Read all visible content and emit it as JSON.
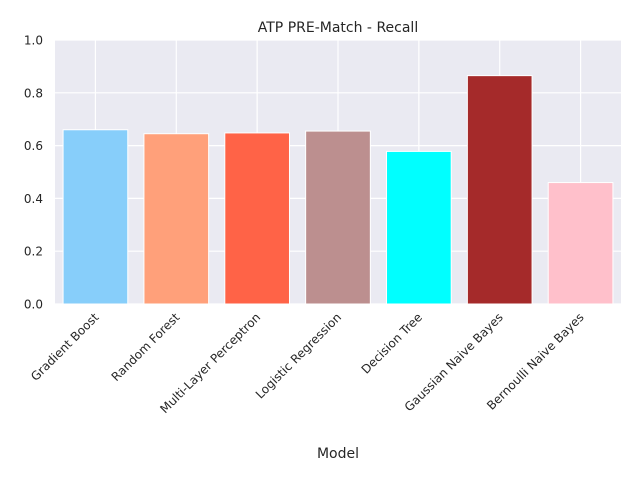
{
  "chart_data": {
    "type": "bar",
    "title": "ATP PRE-Match - Recall",
    "xlabel": "Model",
    "ylabel": "",
    "ylim": [
      0,
      1.0
    ],
    "yticks": [
      "0.0",
      "0.2",
      "0.4",
      "0.6",
      "0.8",
      "1.0"
    ],
    "grid": true,
    "categories": [
      "Gradient Boost",
      "Random Forest",
      "Multi-Layer Perceptron",
      "Logistic Regression",
      "Decision Tree",
      "Gaussian Naive Bayes",
      "Bernoulli Naive Bayes"
    ],
    "values": [
      0.66,
      0.645,
      0.648,
      0.655,
      0.578,
      0.865,
      0.46
    ],
    "colors": [
      "#87cefa",
      "#ffa07a",
      "#ff6347",
      "#bc8f8f",
      "#00ffff",
      "#a52a2a",
      "#ffc0cb"
    ],
    "background": "#eaeaf2",
    "grid_color": "#ffffff"
  }
}
